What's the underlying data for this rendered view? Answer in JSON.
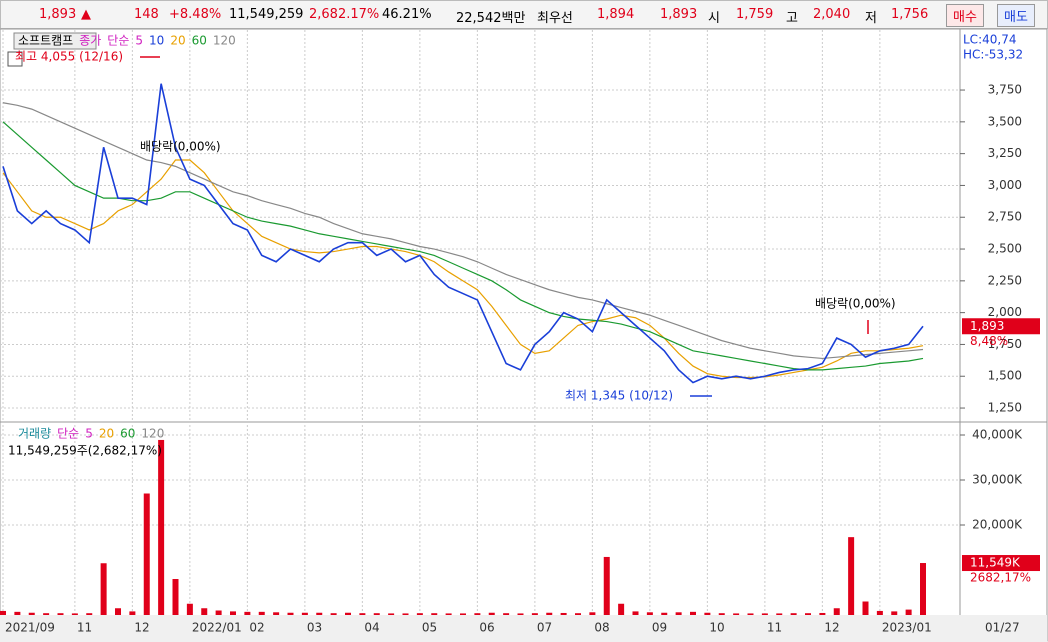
{
  "header": {
    "price": "1,893",
    "arrow": "▲",
    "change": "148",
    "change_pct": "+8.48%",
    "volume": "11,549,259",
    "volume_ratio": "2,682.17%",
    "turnover": "46.21%",
    "amount": "22,542백만",
    "best_label": "최우선",
    "ask": "1,894",
    "bid": "1,893",
    "open_label": "시",
    "open": "1,759",
    "high_label": "고",
    "high": "2,040",
    "low_label": "저",
    "low": "1,756",
    "buy": "매수",
    "sell": "매도"
  },
  "chart_data": [
    {
      "type": "line",
      "name": "소프트캠프",
      "price_label": "종가",
      "method": "단순",
      "categories": [
        "2021/09",
        null,
        null,
        null,
        null,
        "11",
        null,
        null,
        null,
        "12",
        null,
        null,
        null,
        "2022/01",
        null,
        null,
        null,
        "02",
        null,
        null,
        null,
        "03",
        null,
        null,
        null,
        "04",
        null,
        null,
        null,
        "05",
        null,
        null,
        null,
        "06",
        null,
        null,
        null,
        "07",
        null,
        null,
        null,
        "08",
        null,
        null,
        null,
        "09",
        null,
        null,
        null,
        "10",
        null,
        null,
        null,
        "11",
        null,
        null,
        null,
        "12",
        null,
        null,
        null,
        "2023/01",
        null,
        null,
        null
      ],
      "values": [
        3150,
        2800,
        2700,
        2800,
        2700,
        2650,
        2550,
        3300,
        2900,
        2900,
        2850,
        3800,
        3300,
        3050,
        3000,
        2850,
        2700,
        2650,
        2450,
        2400,
        2500,
        2450,
        2400,
        2500,
        2550,
        2550,
        2450,
        2500,
        2400,
        2450,
        2300,
        2200,
        2150,
        2100,
        1850,
        1600,
        1550,
        1750,
        1850,
        2000,
        1950,
        1850,
        2100,
        2000,
        1900,
        1800,
        1700,
        1550,
        1450,
        1500,
        1480,
        1500,
        1480,
        1500,
        1530,
        1550,
        1560,
        1600,
        1800,
        1750,
        1650,
        1700,
        1720,
        1750,
        1893
      ],
      "color": "#1a3fd8",
      "series": [
        {
          "name": "5",
          "color": "#d020c0"
        },
        {
          "name": "10",
          "color": "#1a3fd8"
        },
        {
          "name": "20",
          "color": "#e8a000",
          "values": [
            3100,
            2950,
            2800,
            2750,
            2750,
            2700,
            2650,
            2700,
            2800,
            2850,
            2950,
            3050,
            3200,
            3200,
            3100,
            2950,
            2800,
            2700,
            2600,
            2550,
            2500,
            2480,
            2470,
            2480,
            2500,
            2520,
            2520,
            2500,
            2480,
            2450,
            2400,
            2320,
            2250,
            2180,
            2050,
            1900,
            1750,
            1680,
            1700,
            1800,
            1900,
            1930,
            1950,
            1980,
            1960,
            1900,
            1800,
            1680,
            1580,
            1520,
            1500,
            1490,
            1490,
            1495,
            1510,
            1530,
            1550,
            1570,
            1620,
            1680,
            1700,
            1700,
            1710,
            1720,
            1740
          ]
        },
        {
          "name": "60",
          "color": "#1a9a30",
          "values": [
            3500,
            3400,
            3300,
            3200,
            3100,
            3000,
            2950,
            2900,
            2900,
            2880,
            2880,
            2900,
            2950,
            2950,
            2900,
            2850,
            2800,
            2750,
            2720,
            2700,
            2680,
            2650,
            2620,
            2600,
            2580,
            2560,
            2540,
            2520,
            2500,
            2480,
            2450,
            2400,
            2350,
            2300,
            2250,
            2180,
            2100,
            2050,
            2000,
            1970,
            1950,
            1940,
            1930,
            1910,
            1880,
            1850,
            1800,
            1750,
            1700,
            1680,
            1660,
            1640,
            1620,
            1600,
            1580,
            1560,
            1550,
            1550,
            1560,
            1570,
            1580,
            1600,
            1610,
            1620,
            1640
          ]
        },
        {
          "name": "120",
          "color": "#888888",
          "values": [
            3650,
            3630,
            3600,
            3550,
            3500,
            3450,
            3400,
            3350,
            3300,
            3250,
            3200,
            3180,
            3150,
            3100,
            3050,
            3000,
            2950,
            2920,
            2880,
            2850,
            2820,
            2780,
            2750,
            2700,
            2660,
            2620,
            2600,
            2580,
            2550,
            2520,
            2500,
            2470,
            2440,
            2400,
            2350,
            2300,
            2260,
            2220,
            2180,
            2150,
            2120,
            2100,
            2070,
            2040,
            2010,
            1980,
            1940,
            1900,
            1860,
            1820,
            1780,
            1750,
            1720,
            1700,
            1680,
            1660,
            1650,
            1640,
            1650,
            1660,
            1670,
            1680,
            1690,
            1700,
            1710
          ]
        }
      ],
      "ylim": [
        1156,
        4222
      ],
      "yticks": [
        {
          "value": 1250,
          "label": "1,250"
        },
        {
          "value": 1500,
          "label": "1,500"
        },
        {
          "value": 1750,
          "label": "1,750"
        },
        {
          "value": 2000,
          "label": "2,000"
        },
        {
          "value": 2250,
          "label": "2,250"
        },
        {
          "value": 2500,
          "label": "2,500"
        },
        {
          "value": 2750,
          "label": "2,750"
        },
        {
          "value": 3000,
          "label": "3,000"
        },
        {
          "value": 3250,
          "label": "3,250"
        },
        {
          "value": 3500,
          "label": "3,500"
        },
        {
          "value": 3750,
          "label": "3,750"
        }
      ],
      "grid": true,
      "last_label": "1,893",
      "last_change": "8,48%",
      "indicators": [
        "LC:40,74",
        "HC:-53,32"
      ],
      "annotations": [
        "최고 4,055 (12/16)",
        "배당락(0,00%)",
        "배당락(0,00%)",
        "최저 1,345 (10/12)"
      ],
      "current_date": "01/27"
    },
    {
      "type": "bar",
      "title": "거래량",
      "method": "단순",
      "values": [
        900,
        700,
        500,
        400,
        400,
        350,
        400,
        11500,
        1500,
        800,
        27000,
        38900,
        8000,
        2500,
        1500,
        1000,
        800,
        700,
        700,
        600,
        500,
        500,
        500,
        400,
        500,
        400,
        400,
        350,
        350,
        400,
        400,
        350,
        350,
        400,
        500,
        400,
        350,
        400,
        500,
        450,
        400,
        600,
        12900,
        2500,
        800,
        600,
        500,
        600,
        700,
        500,
        400,
        350,
        350,
        350,
        350,
        400,
        400,
        450,
        1500,
        17300,
        3000,
        900,
        800,
        1200,
        11549
      ],
      "color": "#e0001a",
      "series": [
        {
          "name": "5",
          "color": "#d020c0"
        },
        {
          "name": "20",
          "color": "#e8a000"
        },
        {
          "name": "60",
          "color": "#1a9a30"
        },
        {
          "name": "120",
          "color": "#888888"
        }
      ],
      "ylim": [
        0,
        42222
      ],
      "yticks": [
        {
          "value": 20000,
          "label": "20,000K"
        },
        {
          "value": 30000,
          "label": "30,000K"
        },
        {
          "value": 40000,
          "label": "40,000K"
        }
      ],
      "grid": true,
      "summary": "11,549,259주(2,682,17%)",
      "last_label": "11,549K",
      "last_change": "2682,17%"
    }
  ]
}
